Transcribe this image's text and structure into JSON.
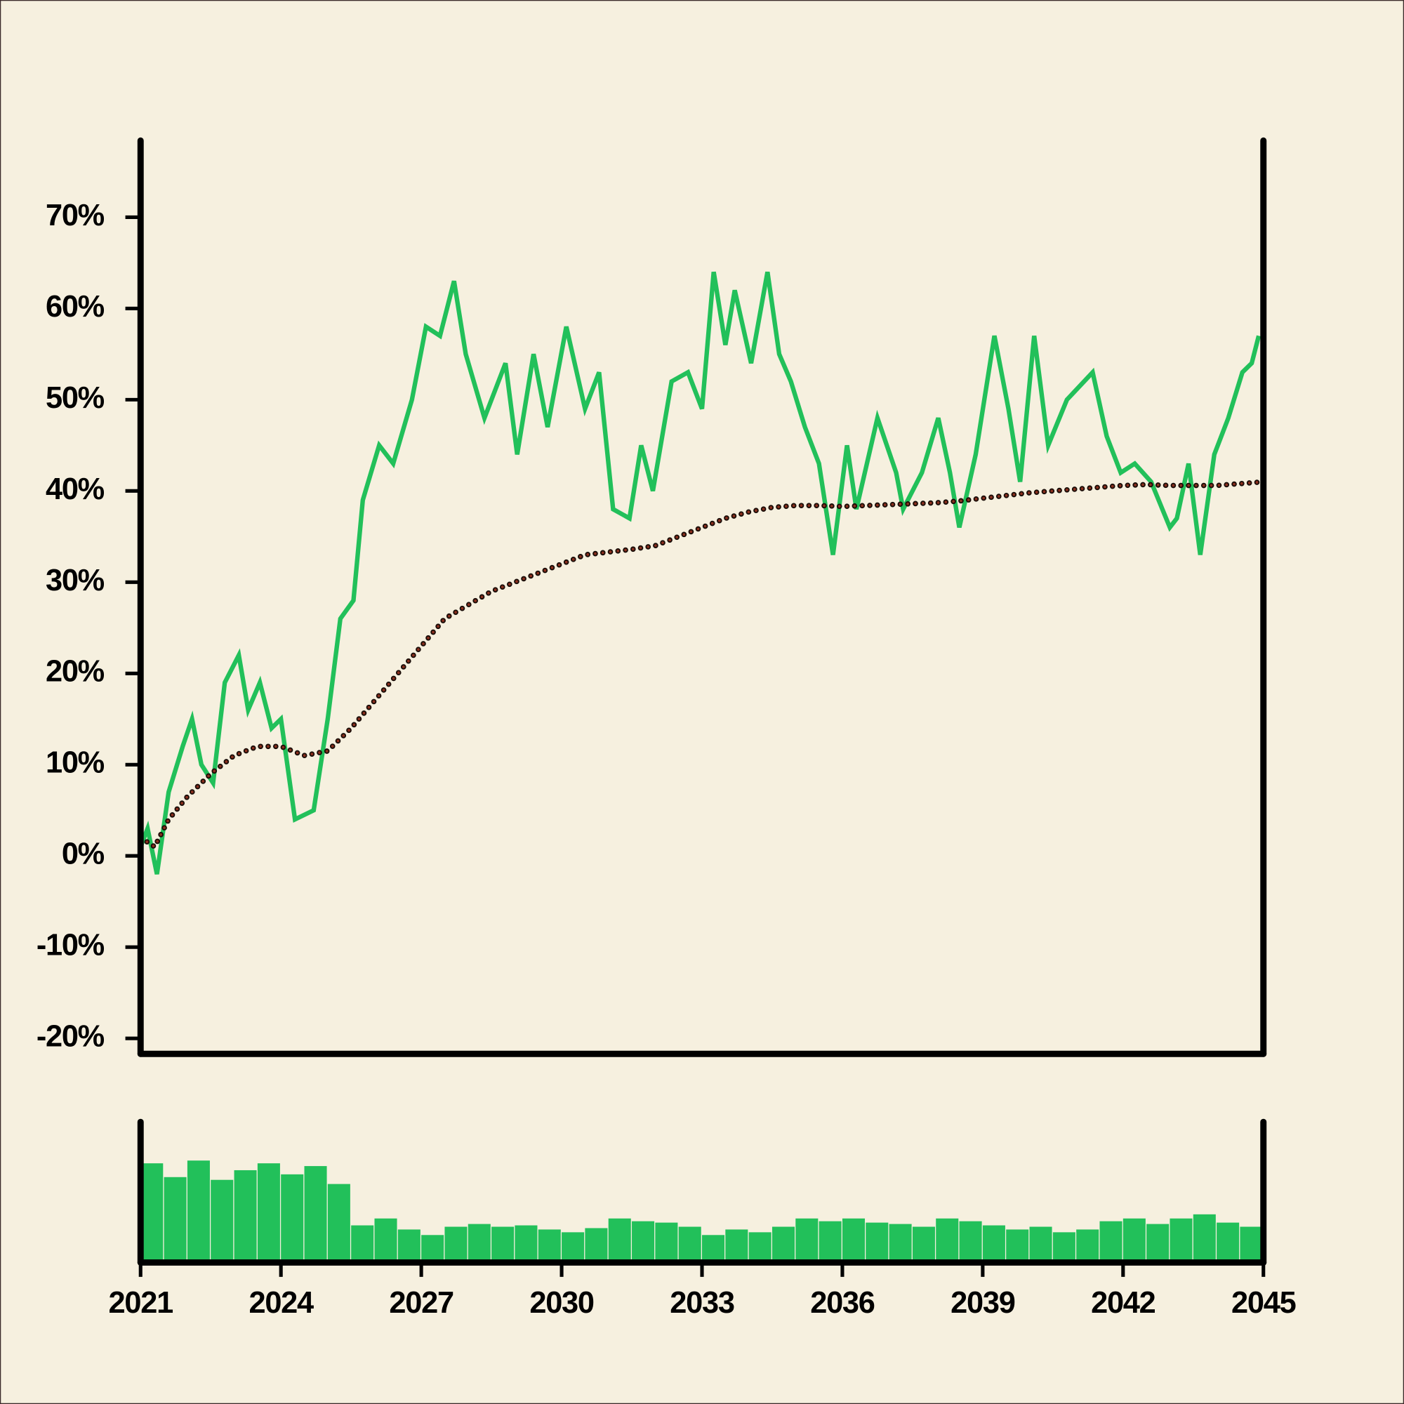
{
  "chart_data": [
    {
      "type": "line",
      "xlim": [
        2021,
        2045
      ],
      "ylim": [
        -21.7,
        78.4
      ],
      "yticks": [
        {
          "value": -20,
          "label": "-20%"
        },
        {
          "value": -10,
          "label": "-10%"
        },
        {
          "value": 0,
          "label": "0%"
        },
        {
          "value": 10,
          "label": "10%"
        },
        {
          "value": 20,
          "label": "20%"
        },
        {
          "value": 30,
          "label": "30%"
        },
        {
          "value": 40,
          "label": "40%"
        },
        {
          "value": 50,
          "label": "50%"
        },
        {
          "value": 60,
          "label": "60%"
        },
        {
          "value": 70,
          "label": "70%"
        }
      ],
      "series": [
        {
          "color": "#22c05a",
          "linestyle": "solid",
          "x": [
            2021.0,
            2021.15,
            2021.35,
            2021.6,
            2021.9,
            2022.1,
            2022.3,
            2022.55,
            2022.8,
            2023.1,
            2023.3,
            2023.55,
            2023.8,
            2024.0,
            2024.3,
            2024.7,
            2025.0,
            2025.27,
            2025.55,
            2025.75,
            2026.1,
            2026.4,
            2026.8,
            2027.1,
            2027.4,
            2027.7,
            2027.95,
            2028.35,
            2028.8,
            2029.05,
            2029.4,
            2029.7,
            2030.1,
            2030.5,
            2030.8,
            2031.1,
            2031.45,
            2031.7,
            2031.95,
            2032.35,
            2032.7,
            2033.0,
            2033.25,
            2033.5,
            2033.7,
            2034.05,
            2034.4,
            2034.65,
            2034.9,
            2035.2,
            2035.5,
            2035.8,
            2036.1,
            2036.3,
            2036.75,
            2037.15,
            2037.3,
            2037.7,
            2038.05,
            2038.3,
            2038.5,
            2038.85,
            2039.25,
            2039.55,
            2039.8,
            2040.1,
            2040.4,
            2040.8,
            2041.35,
            2041.65,
            2041.95,
            2042.25,
            2042.6,
            2043.0,
            2043.15,
            2043.4,
            2043.65,
            2043.95,
            2044.25,
            2044.55,
            2044.75,
            2044.9
          ],
          "values": [
            1,
            3,
            -2,
            7,
            12,
            15,
            10,
            8,
            19,
            22,
            16,
            19,
            14,
            15,
            4,
            5,
            15,
            26,
            28,
            39,
            45,
            43,
            50,
            58,
            57,
            63,
            55,
            48,
            54,
            44,
            55,
            47,
            58,
            49,
            53,
            38,
            37,
            45,
            40,
            52,
            53,
            49,
            64,
            56,
            62,
            54,
            64,
            55,
            52,
            47,
            43,
            33,
            45,
            38,
            48,
            42,
            38,
            42,
            48,
            42,
            36,
            44,
            57,
            49,
            41,
            57,
            45,
            50,
            53,
            46,
            42,
            43,
            41,
            36,
            37,
            43,
            33,
            44,
            48,
            53,
            54,
            57
          ]
        },
        {
          "color": "#8b2f1e",
          "linestyle": "dotted",
          "x": [
            2021.0,
            2021.3,
            2021.6,
            2022.0,
            2022.5,
            2023.0,
            2023.5,
            2024.0,
            2024.5,
            2025.0,
            2025.5,
            2026.0,
            2026.5,
            2027.0,
            2027.5,
            2028.0,
            2028.5,
            2029.0,
            2029.5,
            2030.0,
            2030.5,
            2031.0,
            2031.5,
            2032.0,
            2032.5,
            2033.0,
            2033.5,
            2034.0,
            2034.5,
            2035.0,
            2035.5,
            2036.0,
            2036.5,
            2037.0,
            2037.5,
            2038.0,
            2038.5,
            2039.0,
            2039.5,
            2040.0,
            2040.5,
            2041.0,
            2041.5,
            2042.0,
            2042.5,
            2043.0,
            2043.5,
            2044.0,
            2044.5,
            2045.0
          ],
          "values": [
            2,
            1,
            4,
            6.5,
            9,
            11,
            12,
            12,
            11,
            11.5,
            14,
            17,
            20,
            23,
            26,
            27.5,
            29,
            30,
            31,
            32,
            33,
            33.3,
            33.6,
            34,
            35,
            36,
            37,
            37.7,
            38.2,
            38.4,
            38.4,
            38.3,
            38.4,
            38.5,
            38.6,
            38.7,
            38.9,
            39.2,
            39.5,
            39.8,
            40,
            40.2,
            40.4,
            40.6,
            40.7,
            40.6,
            40.6,
            40.6,
            40.8,
            41
          ]
        }
      ]
    },
    {
      "type": "bar",
      "color": "#22c05a",
      "xlim": [
        2021,
        2045
      ],
      "xticks": [
        2021,
        2024,
        2027,
        2030,
        2033,
        2036,
        2039,
        2042,
        2045
      ],
      "ylim": [
        0,
        100
      ],
      "x": [
        2021.0,
        2021.5,
        2022.0,
        2022.5,
        2023.0,
        2023.5,
        2024.0,
        2024.5,
        2025.0,
        2025.5,
        2026.0,
        2026.5,
        2027.0,
        2027.5,
        2028.0,
        2028.5,
        2029.0,
        2029.5,
        2030.0,
        2030.5,
        2031.0,
        2031.5,
        2032.0,
        2032.5,
        2033.0,
        2033.5,
        2034.0,
        2034.5,
        2035.0,
        2035.5,
        2036.0,
        2036.5,
        2037.0,
        2037.5,
        2038.0,
        2038.5,
        2039.0,
        2039.5,
        2040.0,
        2040.5,
        2041.0,
        2041.5,
        2042.0,
        2042.5,
        2043.0,
        2043.5,
        2044.0,
        2044.5
      ],
      "values": [
        70,
        60,
        72,
        58,
        65,
        70,
        62,
        68,
        55,
        25,
        30,
        22,
        18,
        24,
        26,
        24,
        25,
        22,
        20,
        23,
        30,
        28,
        27,
        24,
        18,
        22,
        20,
        24,
        30,
        28,
        30,
        27,
        26,
        24,
        30,
        28,
        25,
        22,
        24,
        20,
        22,
        28,
        30,
        26,
        30,
        33,
        27,
        24
      ]
    }
  ]
}
